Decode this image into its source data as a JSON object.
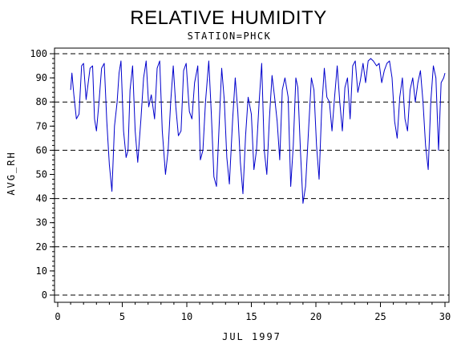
{
  "chart_data": {
    "type": "line",
    "title": "RELATIVE HUMIDITY",
    "subtitle": "STATION=PHCK",
    "xlabel": "JUL 1997",
    "ylabel": "AVG_RH",
    "xlim": [
      0,
      30
    ],
    "ylim": [
      0,
      100
    ],
    "x_ticks": [
      0,
      5,
      10,
      15,
      20,
      25,
      30
    ],
    "y_ticks": [
      0,
      10,
      20,
      30,
      40,
      50,
      60,
      70,
      80,
      90,
      100
    ],
    "reference_lines": [
      0,
      20,
      40,
      60,
      80,
      100
    ],
    "grid": "dashed horizontal reference lines",
    "colors": {
      "series": "#0000cc",
      "axis": "#000000",
      "reference_line": "#000000",
      "background": "#ffffff"
    },
    "series": [
      {
        "x": [
          1.0,
          1.1,
          1.25,
          1.45,
          1.65,
          1.85,
          2.0,
          2.2,
          2.5,
          2.7,
          2.85,
          3.0,
          3.2,
          3.4,
          3.6,
          3.8,
          4.0,
          4.2,
          4.4,
          4.6,
          4.75,
          4.9,
          5.1,
          5.3,
          5.45,
          5.6,
          5.8,
          6.0,
          6.2,
          6.45,
          6.65,
          6.85,
          7.05,
          7.25,
          7.5,
          7.7,
          7.9,
          8.1,
          8.35,
          8.55,
          8.75,
          8.95,
          9.15,
          9.35,
          9.55,
          9.75,
          9.95,
          10.2,
          10.4,
          10.6,
          10.85,
          11.05,
          11.25,
          11.45,
          11.7,
          11.9,
          12.1,
          12.3,
          12.5,
          12.7,
          12.9,
          13.1,
          13.3,
          13.55,
          13.75,
          13.95,
          14.15,
          14.35,
          14.55,
          14.75,
          15.0,
          15.2,
          15.4,
          15.6,
          15.8,
          16.0,
          16.2,
          16.4,
          16.6,
          16.8,
          17.0,
          17.2,
          17.4,
          17.6,
          17.85,
          18.05,
          18.25,
          18.45,
          18.6,
          18.8,
          19.0,
          19.2,
          19.45,
          19.65,
          19.85,
          20.05,
          20.25,
          20.45,
          20.65,
          20.85,
          21.05,
          21.25,
          21.45,
          21.65,
          21.85,
          22.05,
          22.25,
          22.45,
          22.65,
          22.85,
          23.05,
          23.25,
          23.45,
          23.65,
          23.85,
          24.05,
          24.25,
          24.45,
          24.7,
          24.9,
          25.1,
          25.3,
          25.5,
          25.7,
          25.9,
          26.1,
          26.3,
          26.5,
          26.7,
          26.9,
          27.1,
          27.3,
          27.5,
          27.7,
          27.9,
          28.1,
          28.3,
          28.5,
          28.7,
          28.9,
          29.1,
          29.3,
          29.5,
          29.7,
          29.9,
          30.0
        ],
        "y": [
          85,
          92,
          83,
          73,
          75,
          95,
          96,
          81,
          94,
          95,
          73,
          68,
          80,
          94,
          96,
          72,
          54,
          43,
          70,
          80,
          92,
          97,
          68,
          57,
          60,
          85,
          95,
          68,
          55,
          73,
          90,
          97,
          78,
          83,
          73,
          94,
          97,
          68,
          50,
          60,
          80,
          95,
          78,
          66,
          68,
          93,
          96,
          76,
          73,
          88,
          95,
          56,
          60,
          80,
          97,
          75,
          49,
          45,
          70,
          94,
          81,
          57,
          46,
          73,
          90,
          76,
          55,
          42,
          66,
          82,
          75,
          52,
          60,
          80,
          96,
          60,
          50,
          73,
          91,
          82,
          72,
          56,
          85,
          90,
          82,
          45,
          62,
          90,
          86,
          60,
          38,
          45,
          70,
          90,
          85,
          62,
          48,
          77,
          94,
          82,
          80,
          68,
          82,
          95,
          80,
          68,
          86,
          90,
          73,
          95,
          97,
          84,
          89,
          96,
          88,
          97,
          98,
          97,
          95,
          96,
          88,
          93,
          96,
          97,
          90,
          72,
          65,
          82,
          90,
          73,
          68,
          85,
          90,
          80,
          88,
          93,
          80,
          62,
          52,
          80,
          95,
          90,
          60,
          88,
          90,
          92
        ]
      }
    ]
  }
}
